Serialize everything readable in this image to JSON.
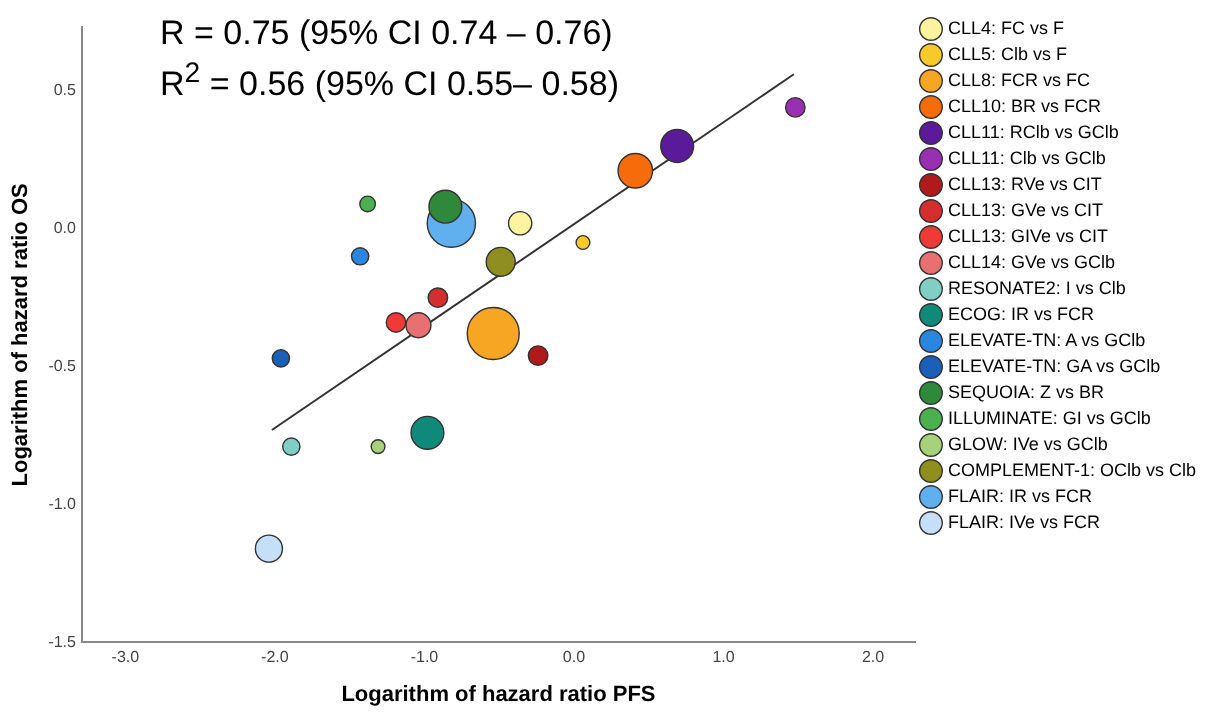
{
  "chart_data": {
    "type": "bubble",
    "xlabel": "Logarithm of hazard ratio PFS",
    "ylabel": "Logarithm of hazard ratio OS",
    "annotations": [
      "R = 0.75 (95% CI 0.74 – 0.76)",
      "R$^{2}$ = 0.56 (95% CI 0.55– 0.58)"
    ],
    "xlim": [
      -3.29,
      2.28
    ],
    "xticks": [
      {
        "value": -3,
        "label": "-3.0"
      },
      {
        "value": -2,
        "label": "-2.0"
      },
      {
        "value": -1,
        "label": "-1.0"
      },
      {
        "value": 0,
        "label": "0.0"
      },
      {
        "value": 1,
        "label": "1.0"
      },
      {
        "value": 2,
        "label": "2.0"
      }
    ],
    "ylim": [
      -1.5,
      0.73
    ],
    "yticks": [
      {
        "value": -1.5,
        "label": "-1.5"
      },
      {
        "value": -1,
        "label": "-1.0"
      },
      {
        "value": -0.5,
        "label": "-0.5"
      },
      {
        "value": 0,
        "label": "0.0"
      },
      {
        "value": 0.5,
        "label": "0.5"
      }
    ],
    "grid": false,
    "legend": "right",
    "series": [
      {
        "name": "CLL4: FC vs F",
        "color": "#fff3a0",
        "x": [
          -0.36
        ],
        "values": [
          0.02
        ],
        "sizes": [
          0.2
        ]
      },
      {
        "name": "CLL5: Clb vs F",
        "color": "#f7c92a",
        "x": [
          0.06
        ],
        "values": [
          -0.05
        ],
        "sizes": [
          0.07
        ]
      },
      {
        "name": "CLL8: FCR vs FC",
        "color": "#f6a623",
        "x": [
          -0.54
        ],
        "values": [
          -0.38
        ],
        "sizes": [
          1
        ]
      },
      {
        "name": "CLL10: BR vs FCR",
        "color": "#f76c0a",
        "x": [
          0.41
        ],
        "values": [
          0.21
        ],
        "sizes": [
          0.44
        ]
      },
      {
        "name": "CLL11: RClb vs GClb",
        "color": "#5b1a9a",
        "x": [
          0.69
        ],
        "values": [
          0.3
        ],
        "sizes": [
          0.4
        ]
      },
      {
        "name": "CLL11: Clb vs GClb",
        "color": "#9b2fb3",
        "x": [
          1.48
        ],
        "values": [
          0.44
        ],
        "sizes": [
          0.14
        ]
      },
      {
        "name": "CLL13: RVe vs CIT",
        "color": "#b01a1a",
        "x": [
          -0.24
        ],
        "values": [
          -0.46
        ],
        "sizes": [
          0.14
        ]
      },
      {
        "name": "CLL13: GVe vs CIT",
        "color": "#d42e2e",
        "x": [
          -0.91
        ],
        "values": [
          -0.25
        ],
        "sizes": [
          0.14
        ]
      },
      {
        "name": "CLL13: GIVe vs CIT",
        "color": "#ef3b36",
        "x": [
          -1.19
        ],
        "values": [
          -0.34
        ],
        "sizes": [
          0.14
        ]
      },
      {
        "name": "CLL14: GVe vs GClb",
        "color": "#e87070",
        "x": [
          -1.04
        ],
        "values": [
          -0.35
        ],
        "sizes": [
          0.23
        ]
      },
      {
        "name": "RESONATE2: I vs Clb",
        "color": "#7fcfc4",
        "x": [
          -1.89
        ],
        "values": [
          -0.79
        ],
        "sizes": [
          0.11
        ]
      },
      {
        "name": "ECOG: IR vs FCR",
        "color": "#0f8a7a",
        "x": [
          -0.98
        ],
        "values": [
          -0.74
        ],
        "sizes": [
          0.4
        ]
      },
      {
        "name": "ELEVATE-TN: A vs GClb",
        "color": "#2a86e0",
        "x": [
          -1.43
        ],
        "values": [
          -0.1
        ],
        "sizes": [
          0.11
        ]
      },
      {
        "name": "ELEVATE-TN: GA vs GClb",
        "color": "#1a5fb8",
        "x": [
          -1.96
        ],
        "values": [
          -0.47
        ],
        "sizes": [
          0.11
        ]
      },
      {
        "name": "SEQUOIA: Z vs BR",
        "color": "#2e8a3a",
        "x": [
          -0.86
        ],
        "values": [
          0.08
        ],
        "sizes": [
          0.4
        ]
      },
      {
        "name": "ILLUMINATE: GI vs GClb",
        "color": "#4caf50",
        "x": [
          -1.38
        ],
        "values": [
          0.09
        ],
        "sizes": [
          0.09
        ]
      },
      {
        "name": "GLOW: IVe vs GClb",
        "color": "#a5d27a",
        "x": [
          -1.31
        ],
        "values": [
          -0.79
        ],
        "sizes": [
          0.07
        ]
      },
      {
        "name": "COMPLEMENT-1: OClb vs Clb",
        "color": "#8f8f1f",
        "x": [
          -0.49
        ],
        "values": [
          -0.12
        ],
        "sizes": [
          0.31
        ]
      },
      {
        "name": "FLAIR: IR vs FCR",
        "color": "#60b0f0",
        "x": [
          -0.82
        ],
        "values": [
          0.02
        ],
        "sizes": [
          0.86
        ]
      },
      {
        "name": "FLAIR: IVe vs FCR",
        "color": "#c4dff7",
        "x": [
          -2.04
        ],
        "values": [
          -1.16
        ],
        "sizes": [
          0.27
        ]
      },
      {
        "type": "line",
        "color": "#333333",
        "x": [
          -2.02,
          1.47
        ],
        "values": [
          -0.73,
          0.56
        ]
      }
    ]
  }
}
